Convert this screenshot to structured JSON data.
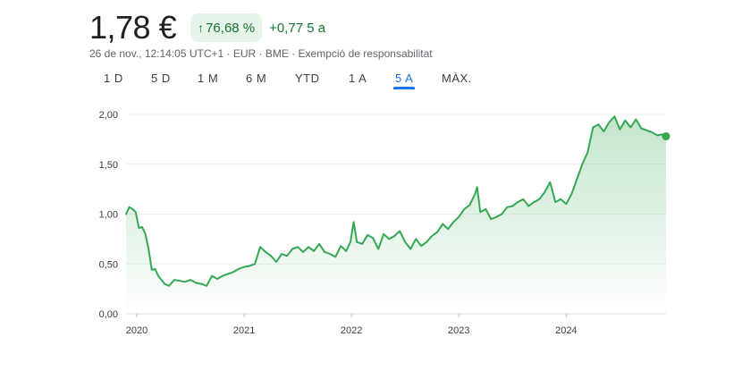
{
  "quote": {
    "price": "1,78 €",
    "change_arrow": "↑",
    "change_percent": "76,68 %",
    "change_abs": "+0,77",
    "change_period": "5 a",
    "meta": "26 de nov., 12:14:05 UTC+1 · EUR · BME · Exempció de responsabilitat",
    "up_color": "#137333",
    "badge_bg": "#e6f4ea"
  },
  "range_tabs": [
    {
      "label": "1 D",
      "active": false
    },
    {
      "label": "5 D",
      "active": false
    },
    {
      "label": "1 M",
      "active": false
    },
    {
      "label": "6 M",
      "active": false
    },
    {
      "label": "YTD",
      "active": false
    },
    {
      "label": "1 A",
      "active": false
    },
    {
      "label": "5 A",
      "active": true
    },
    {
      "label": "MÀX.",
      "active": false
    }
  ],
  "chart_data": {
    "type": "line",
    "line_color": "#34a853",
    "fill": "gradient",
    "grid": true,
    "y_tick_labels": [
      "0,00",
      "0,50",
      "1,00",
      "1,50",
      "2,00"
    ],
    "y_ticks": [
      0,
      0.5,
      1.0,
      1.5,
      2.0
    ],
    "ylim": [
      0,
      2.0
    ],
    "x_tick_labels": [
      "2020",
      "2021",
      "2022",
      "2023",
      "2024"
    ],
    "x_ticks": [
      2020.0,
      2021.0,
      2022.0,
      2023.0,
      2024.0
    ],
    "xlim": [
      2019.9,
      2024.93
    ],
    "series": [
      {
        "x": [
          2019.9,
          2019.93,
          2019.96,
          2019.99,
          2020.02,
          2020.05,
          2020.08,
          2020.11,
          2020.14,
          2020.17,
          2020.2,
          2020.23,
          2020.26,
          2020.3,
          2020.35,
          2020.4,
          2020.45,
          2020.5,
          2020.55,
          2020.6,
          2020.65,
          2020.7,
          2020.75,
          2020.8,
          2020.85,
          2020.9,
          2020.95,
          2021.0,
          2021.05,
          2021.1,
          2021.15,
          2021.2,
          2021.25,
          2021.3,
          2021.35,
          2021.4,
          2021.45,
          2021.5,
          2021.55,
          2021.6,
          2021.65,
          2021.7,
          2021.75,
          2021.8,
          2021.85,
          2021.9,
          2021.95,
          2021.99,
          2022.02,
          2022.05,
          2022.1,
          2022.15,
          2022.2,
          2022.25,
          2022.3,
          2022.35,
          2022.4,
          2022.45,
          2022.5,
          2022.55,
          2022.6,
          2022.65,
          2022.7,
          2022.75,
          2022.8,
          2022.85,
          2022.9,
          2022.95,
          2023.0,
          2023.05,
          2023.1,
          2023.15,
          2023.17,
          2023.2,
          2023.25,
          2023.3,
          2023.35,
          2023.4,
          2023.45,
          2023.5,
          2023.55,
          2023.6,
          2023.65,
          2023.7,
          2023.75,
          2023.8,
          2023.85,
          2023.9,
          2023.95,
          2024.0,
          2024.05,
          2024.1,
          2024.15,
          2024.2,
          2024.25,
          2024.3,
          2024.35,
          2024.4,
          2024.45,
          2024.5,
          2024.55,
          2024.6,
          2024.65,
          2024.7,
          2024.75,
          2024.8,
          2024.85,
          2024.9,
          2024.93
        ],
        "y": [
          1.0,
          1.07,
          1.05,
          1.02,
          0.86,
          0.87,
          0.8,
          0.65,
          0.44,
          0.45,
          0.38,
          0.34,
          0.3,
          0.28,
          0.34,
          0.33,
          0.32,
          0.34,
          0.31,
          0.3,
          0.28,
          0.38,
          0.35,
          0.38,
          0.4,
          0.42,
          0.45,
          0.47,
          0.48,
          0.5,
          0.67,
          0.62,
          0.58,
          0.52,
          0.6,
          0.58,
          0.65,
          0.67,
          0.62,
          0.67,
          0.63,
          0.7,
          0.62,
          0.6,
          0.57,
          0.68,
          0.63,
          0.72,
          0.92,
          0.72,
          0.7,
          0.79,
          0.76,
          0.65,
          0.8,
          0.75,
          0.78,
          0.83,
          0.72,
          0.65,
          0.75,
          0.68,
          0.72,
          0.78,
          0.82,
          0.9,
          0.85,
          0.92,
          0.97,
          1.05,
          1.09,
          1.2,
          1.27,
          1.02,
          1.05,
          0.95,
          0.97,
          1.0,
          1.07,
          1.08,
          1.12,
          1.15,
          1.08,
          1.12,
          1.15,
          1.22,
          1.32,
          1.12,
          1.15,
          1.1,
          1.2,
          1.35,
          1.5,
          1.62,
          1.87,
          1.9,
          1.83,
          1.92,
          1.98,
          1.85,
          1.94,
          1.87,
          1.95,
          1.86,
          1.84,
          1.82,
          1.79,
          1.8,
          1.78
        ]
      }
    ]
  }
}
